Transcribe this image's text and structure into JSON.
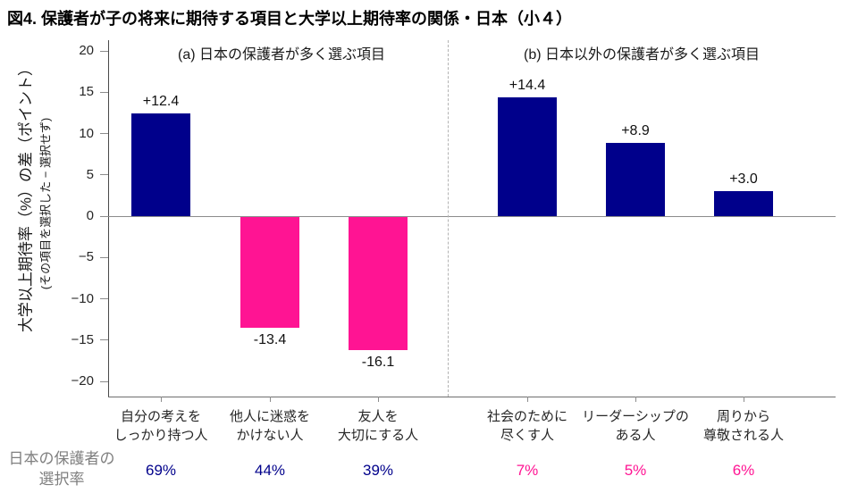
{
  "title": "図4. 保護者が子の将来に期待する項目と大学以上期待率の関係・日本（小４）",
  "colors": {
    "bar_positive": "#00008B",
    "bar_negative": "#FF1493",
    "rate_panel_a": "#00008B",
    "rate_panel_b": "#FF1493",
    "axis": "#6e6e6e",
    "footer_text": "#7f7f7f"
  },
  "chart_data": {
    "type": "bar",
    "title": "図4. 保護者が子の将来に期待する項目と大学以上期待率の関係・日本（小４）",
    "ylabel": "大学以上期待率（%）の差（ポイント）",
    "ylabel_sub": "(その項目を選択した − 選択せず)",
    "ylim": [
      -20,
      20
    ],
    "yticks": [
      20,
      15,
      10,
      5,
      0,
      -5,
      -10,
      -15,
      -20
    ],
    "ytick_labels": [
      "20",
      "15",
      "10",
      "5",
      "0",
      "−5",
      "−10",
      "−15",
      "−20"
    ],
    "grid": false,
    "legend": "none",
    "panels": [
      {
        "id": "a",
        "label": "(a) 日本の保護者が多く選ぶ項目"
      },
      {
        "id": "b",
        "label": "(b) 日本以外の保護者が多く選ぶ項目"
      }
    ],
    "bars": [
      {
        "panel": "a",
        "category": [
          "自分の考えを",
          "しっかり持つ人"
        ],
        "value": 12.4,
        "value_label": "+12.4",
        "selection_rate": "69%"
      },
      {
        "panel": "a",
        "category": [
          "他人に迷惑を",
          "かけない人"
        ],
        "value": -13.4,
        "value_label": "-13.4",
        "selection_rate": "44%"
      },
      {
        "panel": "a",
        "category": [
          "友人を",
          "大切にする人"
        ],
        "value": -16.1,
        "value_label": "-16.1",
        "selection_rate": "39%"
      },
      {
        "panel": "b",
        "category": [
          "社会のために",
          "尽くす人"
        ],
        "value": 14.4,
        "value_label": "+14.4",
        "selection_rate": "7%"
      },
      {
        "panel": "b",
        "category": [
          "リーダーシップの",
          "ある人"
        ],
        "value": 8.9,
        "value_label": "+8.9",
        "selection_rate": "5%"
      },
      {
        "panel": "b",
        "category": [
          "周りから",
          "尊敬される人"
        ],
        "value": 3.0,
        "value_label": "+3.0",
        "selection_rate": "6%"
      }
    ],
    "footer": {
      "line1": "日本の保護者の",
      "line2": "選択率"
    }
  }
}
